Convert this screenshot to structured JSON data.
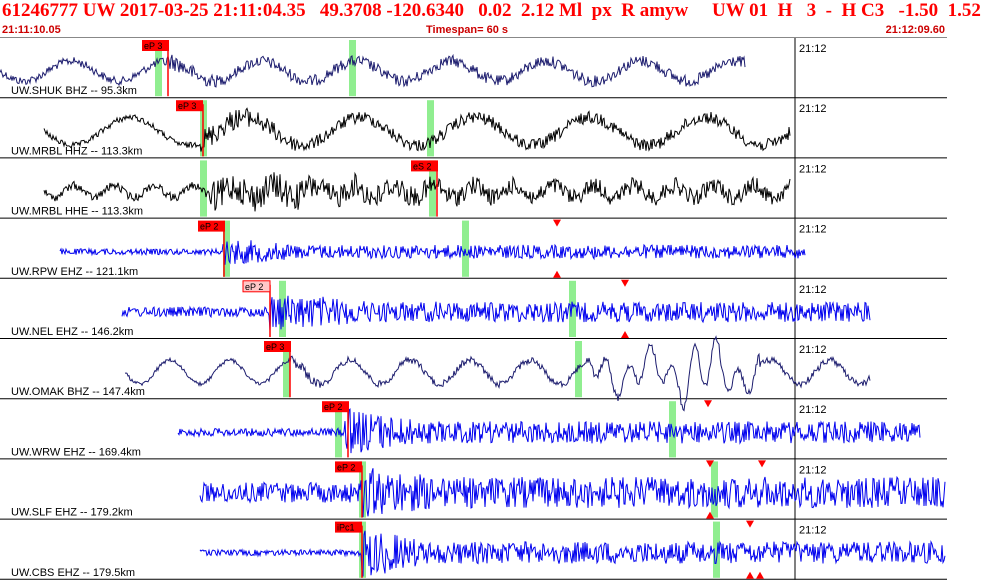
{
  "header": {
    "title": "61246777 UW 2017-03-25 21:11:04.35   49.3708 -120.6340   0.02  2.12 Ml  px  R amyw     UW 01  H   3  -  H C3   -1.50  1.52",
    "start_time": "21:11:10.05",
    "timespan": "Timespan=  60 s",
    "end_time": "21:12:09.60"
  },
  "colors": {
    "pick_flag": "#ff0000",
    "pick_flag_light": "#ffc8c8",
    "uncertainty_band": "#90ee90",
    "trace_navy": "#1c1c6e",
    "trace_black": "#000000",
    "trace_blue": "#0000ee",
    "label_red": "#ff0000",
    "title_red": "#ff0000"
  },
  "channels": [
    {
      "label": "UW.SHUK BHZ -- 95.3km",
      "time": "21:12",
      "pick": "eP 3",
      "color": "#1c1c6e"
    },
    {
      "label": "UW.MRBL HHZ -- 113.3km",
      "time": "21:12",
      "pick": "eP 3",
      "color": "#000000"
    },
    {
      "label": "UW.MRBL HHE -- 113.3km",
      "time": "21:12",
      "pick": "eS 2",
      "color": "#000000"
    },
    {
      "label": "UW.RPW EHZ -- 121.1km",
      "time": "21:12",
      "pick": "eP 2",
      "color": "#0000ee"
    },
    {
      "label": "UW.NEL EHZ -- 146.2km",
      "time": "21:12",
      "pick": "eP 2",
      "color": "#0000ee"
    },
    {
      "label": "UW.OMAK BHZ -- 147.4km",
      "time": "21:12",
      "pick": "eP 3",
      "color": "#1c1c6e"
    },
    {
      "label": "UW.WRW EHZ -- 169.4km",
      "time": "21:12",
      "pick": "eP 2",
      "color": "#0000ee"
    },
    {
      "label": "UW.SLF EHZ -- 179.2km",
      "time": "21:12",
      "pick": "eP 2",
      "color": "#0000ee"
    },
    {
      "label": "UW.CBS EHZ -- 179.5km",
      "time": "21:12",
      "pick": "iPc1",
      "color": "#0000ee"
    }
  ]
}
